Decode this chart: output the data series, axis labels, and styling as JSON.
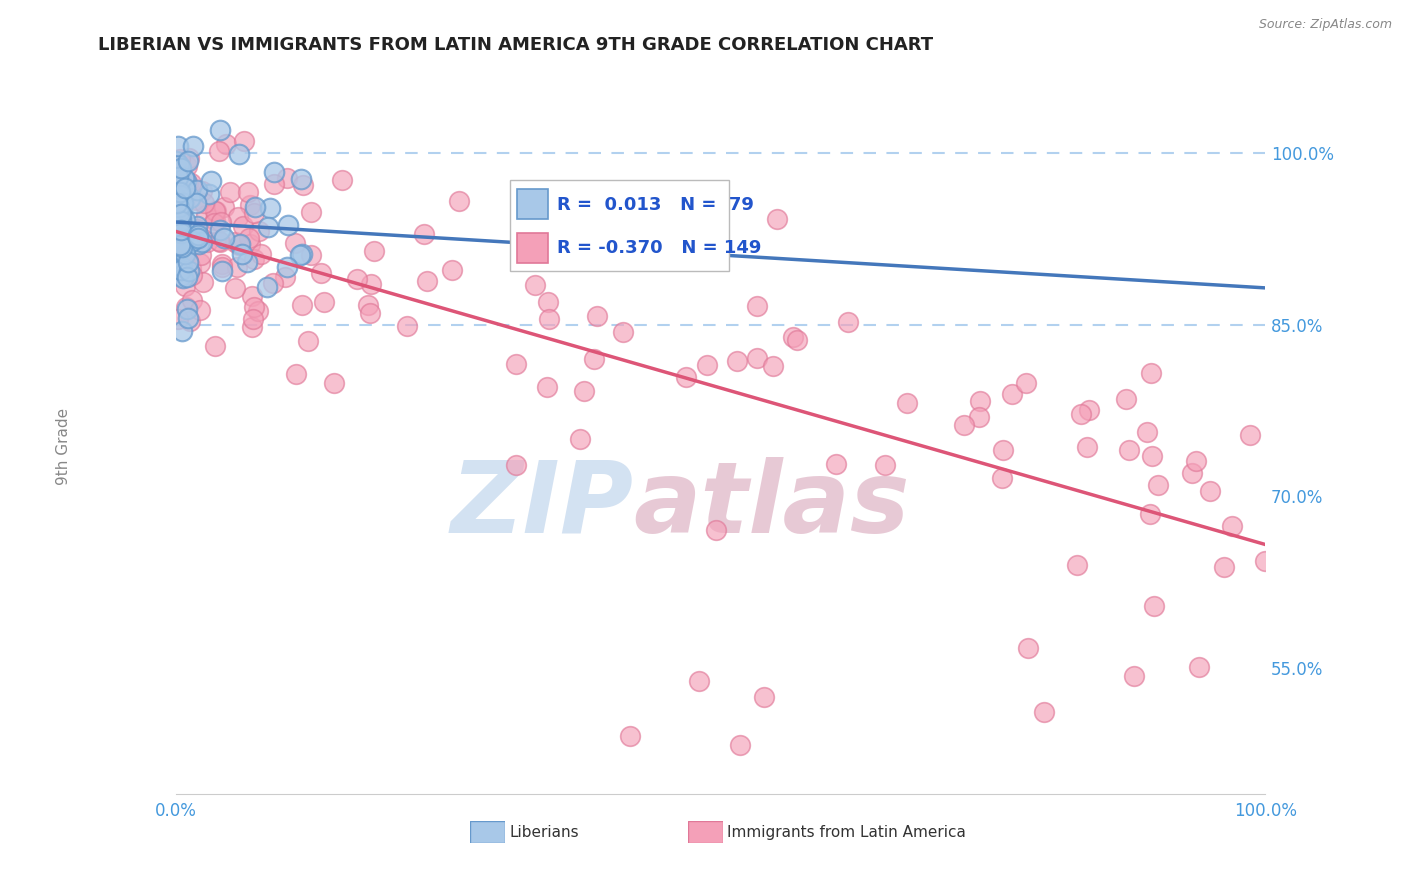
{
  "title": "LIBERIAN VS IMMIGRANTS FROM LATIN AMERICA 9TH GRADE CORRELATION CHART",
  "source": "Source: ZipAtlas.com",
  "ylabel": "9th Grade",
  "legend_R1": "0.013",
  "legend_N1": "79",
  "legend_R2": "-0.370",
  "legend_N2": "149",
  "blue_fill": "#a8c8e8",
  "blue_edge": "#6699cc",
  "pink_fill": "#f4a0b8",
  "pink_edge": "#e07898",
  "blue_line_color": "#4477bb",
  "pink_line_color": "#dd5577",
  "dashed_color": "#aaccee",
  "ytick_color": "#4499dd",
  "xtick_color": "#4499dd",
  "title_color": "#222222",
  "source_color": "#888888",
  "ylabel_color": "#888888",
  "legend_text_color": "#2255cc",
  "legend_border": "#cccccc",
  "watermark_zip_color": "#ccddf0",
  "watermark_atlas_color": "#e0b8c8",
  "xlim": [
    0.0,
    100.0
  ],
  "ylim": [
    44.0,
    104.0
  ],
  "dashed_y1": 100.0,
  "dashed_y2": 85.0,
  "yticks": [
    55.0,
    70.0,
    85.0,
    100.0
  ],
  "ytick_labels": [
    "55.0%",
    "70.0%",
    "85.0%",
    "100.0%"
  ]
}
